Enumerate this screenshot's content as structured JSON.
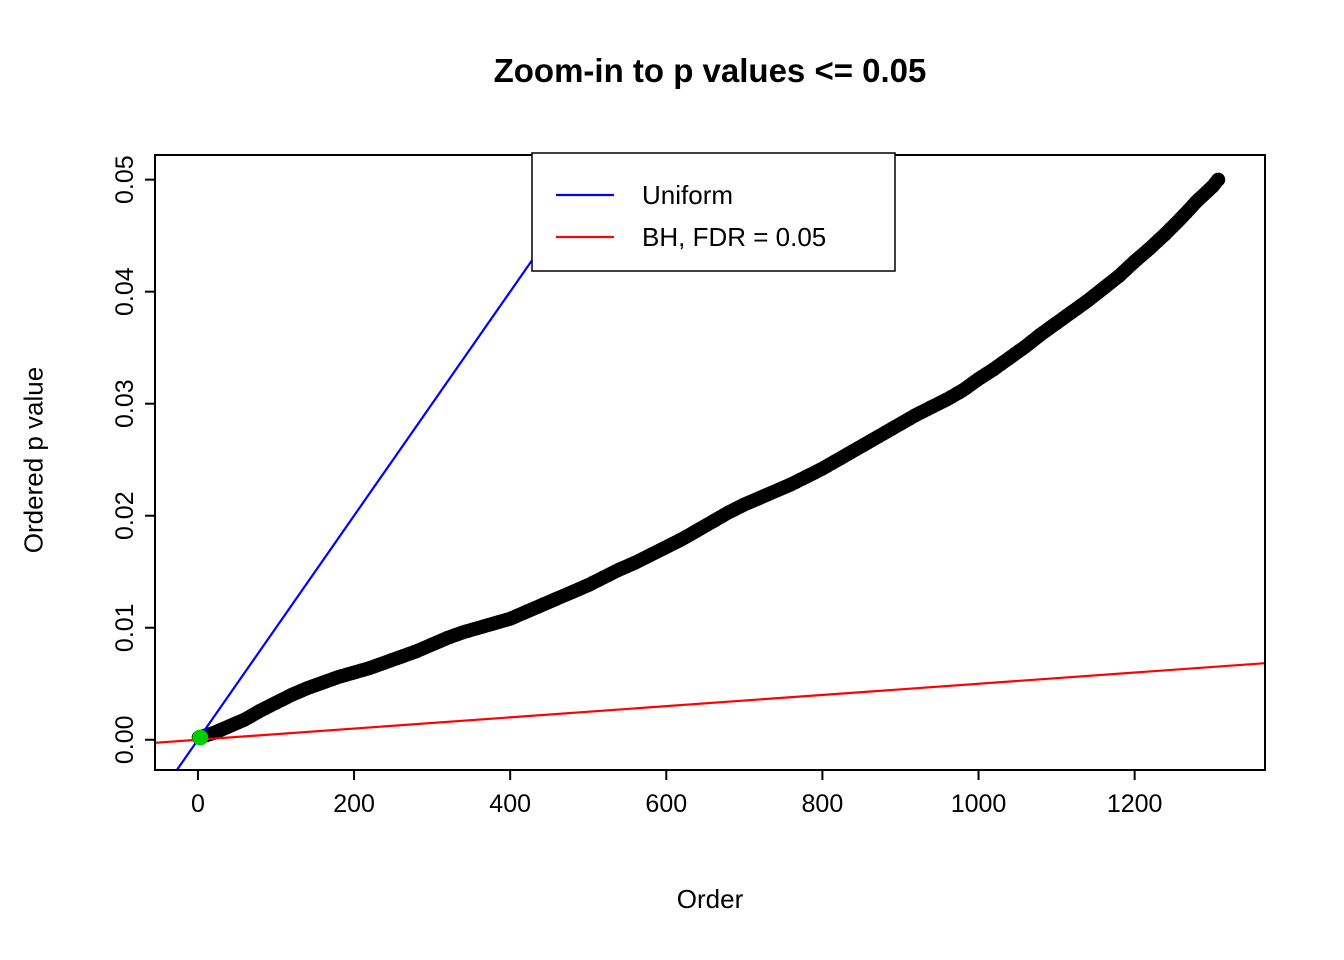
{
  "chart_data": {
    "type": "scatter",
    "title": "Zoom-in to p values <= 0.05",
    "xlabel": "Order",
    "ylabel": "Ordered p value",
    "xlim": [
      -55,
      1367
    ],
    "ylim": [
      -0.0027,
      0.0522
    ],
    "grid": false,
    "x_ticks": [
      0,
      200,
      400,
      600,
      800,
      1000,
      1200
    ],
    "x_tick_labels": [
      "0",
      "200",
      "400",
      "600",
      "800",
      "1000",
      "1200"
    ],
    "y_ticks": [
      0,
      0.01,
      0.02,
      0.03,
      0.04,
      0.05
    ],
    "y_tick_labels": [
      "0.00",
      "0.01",
      "0.02",
      "0.03",
      "0.04",
      "0.05"
    ],
    "legend_position": "top-center",
    "legend": {
      "entries": [
        {
          "label": "Uniform",
          "color": "#0000FF"
        },
        {
          "label": "BH, FDR = 0.05",
          "color": "#FF0000"
        }
      ]
    },
    "lines": [
      {
        "name": "uniform-line",
        "color": "#0000FF",
        "slope": 0.0001,
        "intercept": 0
      },
      {
        "name": "bh-fdr-line",
        "color": "#FF0000",
        "slope": 5e-06,
        "intercept": 0
      }
    ],
    "series": [
      {
        "name": "ordered-p-values",
        "color": "#000000",
        "marker": "filled-circle",
        "points": [
          [
            1,
            0.0002
          ],
          [
            20,
            0.0006
          ],
          [
            40,
            0.0012
          ],
          [
            60,
            0.0018
          ],
          [
            80,
            0.0026
          ],
          [
            100,
            0.0033
          ],
          [
            120,
            0.004
          ],
          [
            140,
            0.0046
          ],
          [
            160,
            0.0051
          ],
          [
            180,
            0.0056
          ],
          [
            200,
            0.006
          ],
          [
            220,
            0.0064
          ],
          [
            240,
            0.0069
          ],
          [
            260,
            0.0074
          ],
          [
            280,
            0.0079
          ],
          [
            300,
            0.0085
          ],
          [
            320,
            0.0091
          ],
          [
            340,
            0.0096
          ],
          [
            360,
            0.01
          ],
          [
            380,
            0.0104
          ],
          [
            400,
            0.0108
          ],
          [
            420,
            0.0114
          ],
          [
            440,
            0.012
          ],
          [
            460,
            0.0126
          ],
          [
            480,
            0.0132
          ],
          [
            500,
            0.0138
          ],
          [
            520,
            0.0145
          ],
          [
            540,
            0.0152
          ],
          [
            560,
            0.0158
          ],
          [
            580,
            0.0165
          ],
          [
            600,
            0.0172
          ],
          [
            620,
            0.0179
          ],
          [
            640,
            0.0187
          ],
          [
            660,
            0.0195
          ],
          [
            680,
            0.0203
          ],
          [
            700,
            0.021
          ],
          [
            720,
            0.0216
          ],
          [
            740,
            0.0222
          ],
          [
            760,
            0.0228
          ],
          [
            780,
            0.0235
          ],
          [
            800,
            0.0242
          ],
          [
            820,
            0.025
          ],
          [
            840,
            0.0258
          ],
          [
            860,
            0.0266
          ],
          [
            880,
            0.0274
          ],
          [
            900,
            0.0282
          ],
          [
            920,
            0.029
          ],
          [
            940,
            0.0297
          ],
          [
            960,
            0.0304
          ],
          [
            980,
            0.0312
          ],
          [
            1000,
            0.0322
          ],
          [
            1020,
            0.0331
          ],
          [
            1040,
            0.0341
          ],
          [
            1060,
            0.0351
          ],
          [
            1080,
            0.0362
          ],
          [
            1100,
            0.0372
          ],
          [
            1120,
            0.0382
          ],
          [
            1140,
            0.0392
          ],
          [
            1160,
            0.0403
          ],
          [
            1180,
            0.0414
          ],
          [
            1200,
            0.0427
          ],
          [
            1220,
            0.0439
          ],
          [
            1240,
            0.0452
          ],
          [
            1260,
            0.0466
          ],
          [
            1280,
            0.0481
          ],
          [
            1300,
            0.0494
          ],
          [
            1307,
            0.05
          ]
        ]
      }
    ],
    "highlight_points": {
      "name": "significant-points",
      "color": "#00CC00",
      "points": [
        [
          3,
          0.0002
        ]
      ]
    },
    "colors": {
      "background": "#FFFFFF",
      "axis": "#000000",
      "points": "#000000",
      "uniform_line": "#0000FF",
      "bh_line": "#FF0000",
      "highlight": "#00CC00"
    }
  }
}
